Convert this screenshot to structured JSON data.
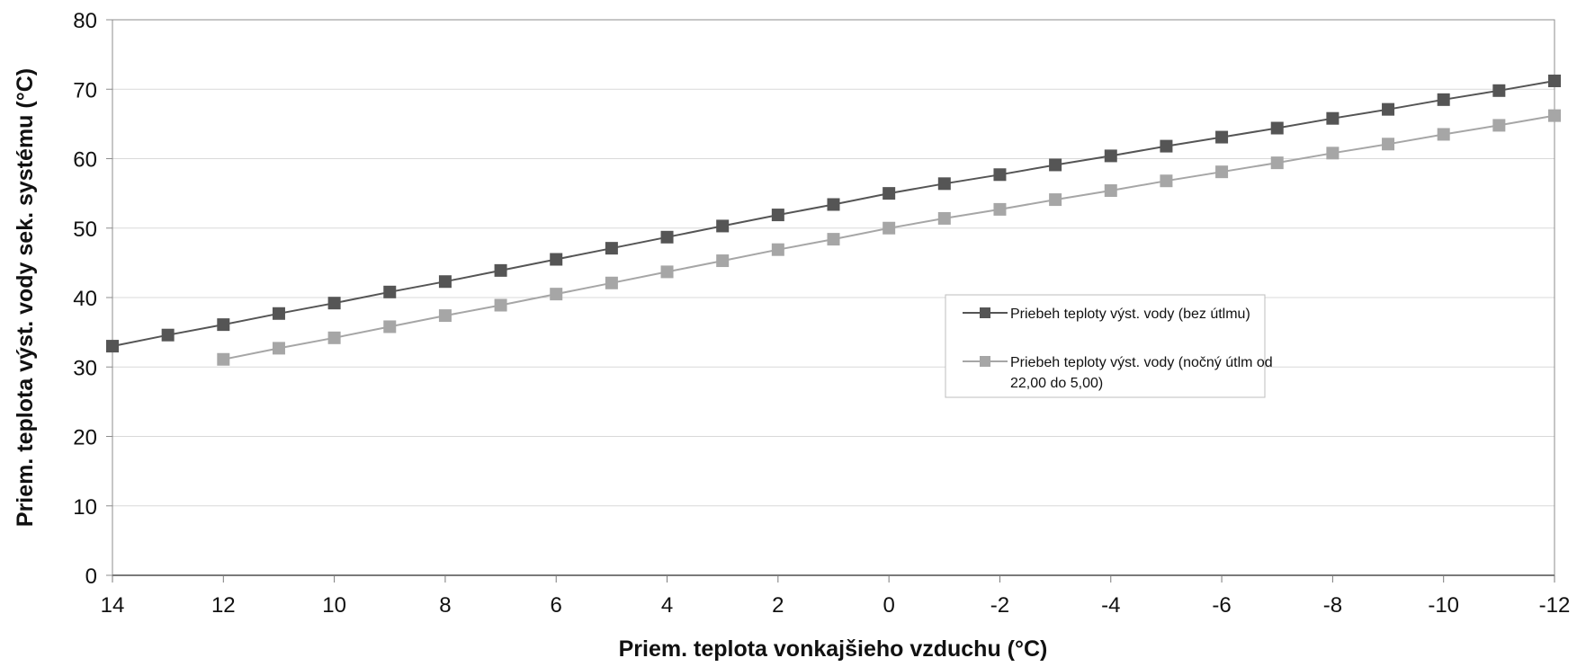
{
  "chart_data": {
    "type": "line",
    "xlabel": "Priem. teplota vonkajšieho vzduchu (°C)",
    "ylabel": "Priem. teplota výst. vody sek. systému (°C)",
    "x_reversed": true,
    "xlim": [
      14,
      -12
    ],
    "ylim": [
      0,
      80
    ],
    "x_ticks": [
      "14",
      "12",
      "10",
      "8",
      "6",
      "4",
      "2",
      "0",
      "-2",
      "-4",
      "-6",
      "-8",
      "-10",
      "-12"
    ],
    "y_ticks": [
      "0",
      "10",
      "20",
      "30",
      "40",
      "50",
      "60",
      "70",
      "80"
    ],
    "grid": "horizontal",
    "legend_position": "center-right",
    "series": [
      {
        "name": "Priebeh teploty výst. vody (bez útlmu)",
        "color": "#555555",
        "x": [
          14,
          13,
          12,
          11,
          10,
          9,
          8,
          7,
          6,
          5,
          4,
          3,
          2,
          1,
          0,
          -1,
          -2,
          -3,
          -4,
          -5,
          -6,
          -7,
          -8,
          -9,
          -10,
          -11,
          -12
        ],
        "y": [
          33.0,
          34.6,
          36.1,
          37.7,
          39.2,
          40.8,
          42.3,
          43.9,
          45.5,
          47.1,
          48.7,
          50.3,
          51.9,
          53.4,
          55.0,
          56.4,
          57.7,
          59.1,
          60.4,
          61.8,
          63.1,
          64.4,
          65.8,
          67.1,
          68.5,
          69.8,
          71.2
        ]
      },
      {
        "name": "Priebeh teploty výst. vody (nočný útlm od 22,00 do 5,00)",
        "name_lines": [
          "Priebeh teploty výst. vody (nočný útlm od",
          "22,00 do 5,00)"
        ],
        "color": "#a6a6a6",
        "x": [
          12,
          11,
          10,
          9,
          8,
          7,
          6,
          5,
          4,
          3,
          2,
          1,
          0,
          -1,
          -2,
          -3,
          -4,
          -5,
          -6,
          -7,
          -8,
          -9,
          -10,
          -11,
          -12
        ],
        "y": [
          31.1,
          32.7,
          34.2,
          35.8,
          37.4,
          38.9,
          40.5,
          42.1,
          43.7,
          45.3,
          46.9,
          48.4,
          50.0,
          51.4,
          52.7,
          54.1,
          55.4,
          56.8,
          58.1,
          59.4,
          60.8,
          62.1,
          63.5,
          64.8,
          66.2
        ]
      }
    ]
  }
}
